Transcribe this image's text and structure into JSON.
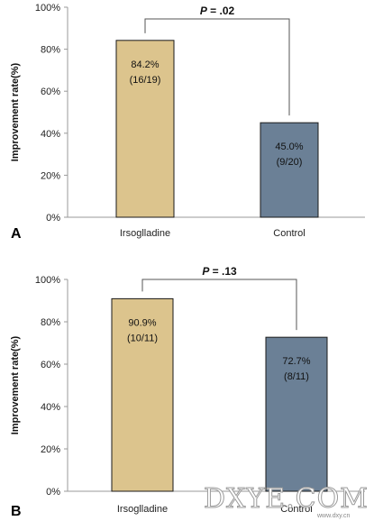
{
  "chart_data": [
    {
      "panel_label": "A",
      "type": "bar",
      "categories": [
        "Irsoglladine",
        "Control"
      ],
      "values": [
        84.2,
        45.0
      ],
      "value_labels": [
        "84.2%",
        "45.0%"
      ],
      "count_labels": [
        "(16/19)",
        "(9/20)"
      ],
      "bar_colors": [
        "#dcc48d",
        "#6b8096"
      ],
      "ylabel": "Improvement rate(%)",
      "ylim": [
        0,
        100
      ],
      "yticks": [
        0,
        20,
        40,
        60,
        80,
        100
      ],
      "ytick_labels": [
        "0%",
        "20%",
        "40%",
        "60%",
        "80%",
        "100%"
      ],
      "significance": {
        "italic_part": "P",
        "rest": " = .02"
      }
    },
    {
      "panel_label": "B",
      "type": "bar",
      "categories": [
        "Irsoglladine",
        "Control"
      ],
      "values": [
        90.9,
        72.7
      ],
      "value_labels": [
        "90.9%",
        "72.7%"
      ],
      "count_labels": [
        "(10/11)",
        "(8/11)"
      ],
      "bar_colors": [
        "#dcc48d",
        "#6b8096"
      ],
      "ylabel": "Improvement rate(%)",
      "ylim": [
        0,
        100
      ],
      "yticks": [
        0,
        20,
        40,
        60,
        80,
        100
      ],
      "ytick_labels": [
        "0%",
        "20%",
        "40%",
        "60%",
        "80%",
        "100%"
      ],
      "significance": {
        "italic_part": "P",
        "rest": " = .13"
      }
    }
  ],
  "watermark": {
    "text": "DXYE.COM",
    "small_text": "www.dxy.cn"
  }
}
